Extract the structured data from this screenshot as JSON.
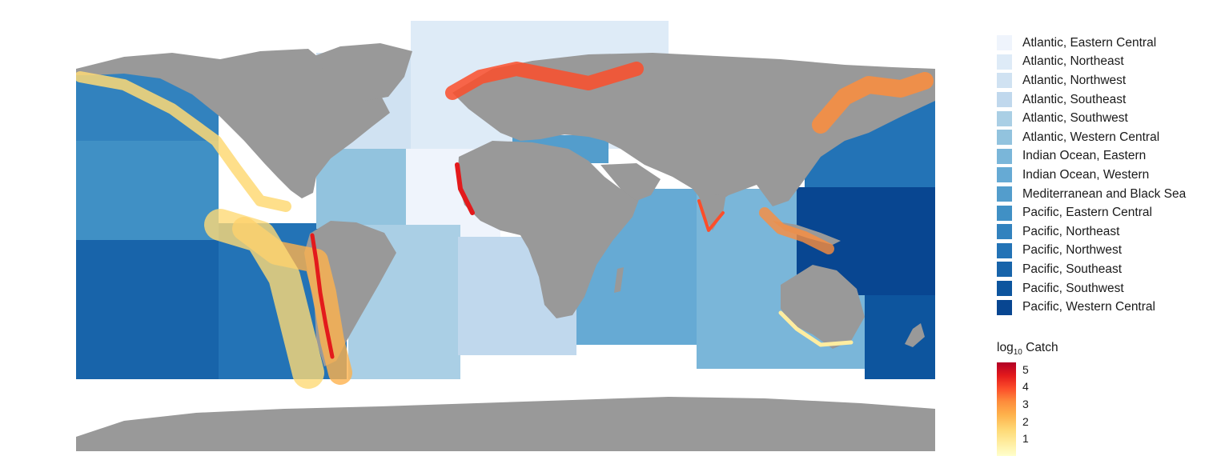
{
  "regions": [
    {
      "name": "Atlantic, Eastern Central",
      "color": "#eff4fc"
    },
    {
      "name": "Atlantic, Northeast",
      "color": "#deebf7"
    },
    {
      "name": "Atlantic, Northwest",
      "color": "#d0e2f2"
    },
    {
      "name": "Atlantic, Southeast",
      "color": "#c0d8ed"
    },
    {
      "name": "Atlantic, Southwest",
      "color": "#aacfe5"
    },
    {
      "name": "Atlantic, Western Central",
      "color": "#92c3de"
    },
    {
      "name": "Indian Ocean, Eastern",
      "color": "#7ab6d9"
    },
    {
      "name": "Indian Ocean, Western",
      "color": "#66aad4"
    },
    {
      "name": "Mediterranean and Black Sea",
      "color": "#539dcc"
    },
    {
      "name": "Pacific, Eastern Central",
      "color": "#4090c5"
    },
    {
      "name": "Pacific, Northeast",
      "color": "#3282be"
    },
    {
      "name": "Pacific, Northwest",
      "color": "#2373b6"
    },
    {
      "name": "Pacific, Southeast",
      "color": "#1864aa"
    },
    {
      "name": "Pacific, Southwest",
      "color": "#0d559e"
    },
    {
      "name": "Pacific, Western Central",
      "color": "#084691"
    }
  ],
  "scale": {
    "title_main": "log",
    "title_sub": "10",
    "title_rest": " Catch",
    "ticks": [
      "5",
      "4",
      "3",
      "2",
      "1"
    ],
    "tick_values": [
      5,
      4,
      3,
      2,
      1
    ],
    "range": [
      0,
      5.4
    ]
  },
  "colors": {
    "land": "#999999",
    "ocean_bg": "#ffffff",
    "catch_low": "#ffffcc",
    "catch_high": "#b10026"
  }
}
